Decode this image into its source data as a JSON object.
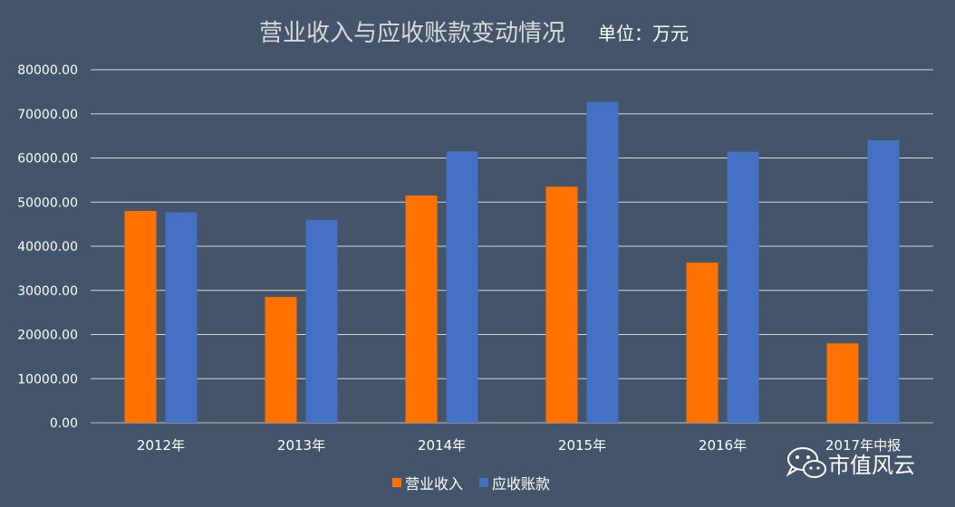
{
  "chart_data": {
    "type": "bar",
    "title": "营业收入与应收账款变动情况",
    "unit_label": "单位：万元",
    "categories": [
      "2012年",
      "2013年",
      "2014年",
      "2015年",
      "2016年",
      "2017年中报"
    ],
    "series": [
      {
        "name": "营业收入",
        "color": "#ff7100",
        "values": [
          48000,
          28500,
          51500,
          53500,
          36300,
          18000
        ]
      },
      {
        "name": "应收账款",
        "color": "#4471c4",
        "values": [
          47700,
          46000,
          61500,
          72700,
          61400,
          64000
        ]
      }
    ],
    "ylim": [
      0,
      80000
    ],
    "yticks": [
      "0.00",
      "10000.00",
      "20000.00",
      "30000.00",
      "40000.00",
      "50000.00",
      "60000.00",
      "70000.00",
      "80000.00"
    ],
    "grid": true,
    "legend_position": "bottom"
  },
  "watermark": {
    "text": "市值风云",
    "icon": "wechat-icon"
  }
}
